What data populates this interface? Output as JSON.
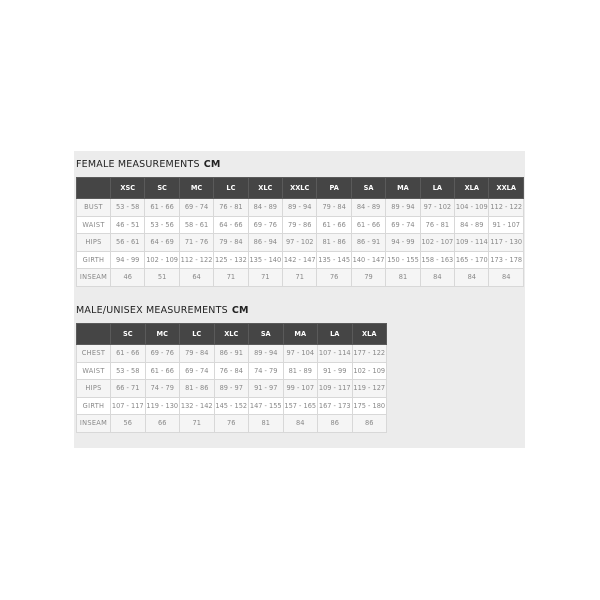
{
  "female": {
    "title": "FEMALE MEASUREMENTS",
    "unit": "CM",
    "sizes": [
      "XSC",
      "SC",
      "MC",
      "LC",
      "XLC",
      "XXLC",
      "PA",
      "SA",
      "MA",
      "LA",
      "XLA",
      "XXLA"
    ],
    "rows": [
      {
        "label": "BUST",
        "values": [
          "53 - 58",
          "61 - 66",
          "69 - 74",
          "76 - 81",
          "84 - 89",
          "89 - 94",
          "79 - 84",
          "84 - 89",
          "89 - 94",
          "97 - 102",
          "104 - 109",
          "112 - 122"
        ]
      },
      {
        "label": "WAIST",
        "values": [
          "46 - 51",
          "53 - 56",
          "58 - 61",
          "64 - 66",
          "69 - 76",
          "79 - 86",
          "61 - 66",
          "61 - 66",
          "69 - 74",
          "76 - 81",
          "84 - 89",
          "91 - 107"
        ]
      },
      {
        "label": "HIPS",
        "values": [
          "56 - 61",
          "64 - 69",
          "71 - 76",
          "79 - 84",
          "86 - 94",
          "97 - 102",
          "81 - 86",
          "86 - 91",
          "94 - 99",
          "102 - 107",
          "109 - 114",
          "117 - 130"
        ]
      },
      {
        "label": "GIRTH",
        "values": [
          "94 - 99",
          "102 - 109",
          "112 - 122",
          "125 - 132",
          "135 - 140",
          "142 - 147",
          "135 - 145",
          "140 - 147",
          "150 - 155",
          "158 - 163",
          "165 - 170",
          "173 - 178"
        ]
      },
      {
        "label": "INSEAM",
        "values": [
          "46",
          "51",
          "64",
          "71",
          "71",
          "71",
          "76",
          "79",
          "81",
          "84",
          "84",
          "84"
        ]
      }
    ]
  },
  "male": {
    "title": "MALE/UNISEX MEASUREMENTS",
    "unit": "CM",
    "sizes": [
      "SC",
      "MC",
      "LC",
      "XLC",
      "SA",
      "MA",
      "LA",
      "XLA"
    ],
    "rows": [
      {
        "label": "CHEST",
        "values": [
          "61 - 66",
          "69 - 76",
          "79 - 84",
          "86 - 91",
          "89 - 94",
          "97 - 104",
          "107 - 114",
          "177 - 122"
        ]
      },
      {
        "label": "WAIST",
        "values": [
          "53 - 58",
          "61 - 66",
          "69 - 74",
          "76 - 84",
          "74 - 79",
          "81 - 89",
          "91 - 99",
          "102 - 109"
        ]
      },
      {
        "label": "HIPS",
        "values": [
          "66 - 71",
          "74 - 79",
          "81 - 86",
          "89 - 97",
          "91 - 97",
          "99 - 107",
          "109 - 117",
          "119 - 127"
        ]
      },
      {
        "label": "GIRTH",
        "values": [
          "107 - 117",
          "119 - 130",
          "132 - 142",
          "145 - 152",
          "147 - 155",
          "157 - 165",
          "167 - 173",
          "175 - 180"
        ]
      },
      {
        "label": "INSEAM",
        "values": [
          "56",
          "66",
          "71",
          "76",
          "81",
          "84",
          "86",
          "86"
        ]
      }
    ]
  }
}
